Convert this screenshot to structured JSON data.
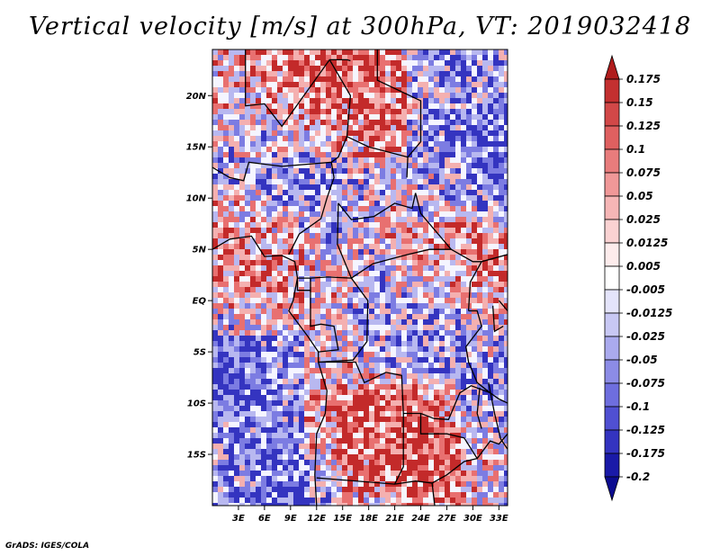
{
  "title": "Vertical velocity [m/s] at 300hPa, VT: 2019032418",
  "credit": "GrADS: IGES/COLA",
  "map": {
    "lat_labels": [
      "20N",
      "15N",
      "10N",
      "5N",
      "EQ",
      "5S",
      "10S",
      "15S"
    ],
    "lat_values": [
      20,
      15,
      10,
      5,
      0,
      -5,
      -10,
      -15
    ],
    "lon_labels": [
      "3E",
      "6E",
      "9E",
      "12E",
      "15E",
      "18E",
      "21E",
      "24E",
      "27E",
      "30E",
      "33E"
    ],
    "lon_values": [
      3,
      6,
      9,
      12,
      15,
      18,
      21,
      24,
      27,
      30,
      33
    ],
    "lon_range": [
      0,
      34
    ],
    "lat_range": [
      -20,
      24.5
    ]
  },
  "colorbar": {
    "labels": [
      "0.175",
      "0.15",
      "0.125",
      "0.1",
      "0.075",
      "0.05",
      "0.025",
      "0.0125",
      "0.005",
      "-0.005",
      "-0.0125",
      "-0.025",
      "-0.05",
      "-0.075",
      "-0.1",
      "-0.125",
      "-0.175",
      "-0.2"
    ],
    "colors": [
      "#b01c1c",
      "#c33030",
      "#d24848",
      "#df6060",
      "#e87c7c",
      "#f09898",
      "#f6b6b6",
      "#fad2d2",
      "#fdecec",
      "#ffffff",
      "#e4e4fb",
      "#c8c8f4",
      "#aaaaee",
      "#8c8ce6",
      "#6e6ede",
      "#5050d2",
      "#3434c0",
      "#1a1aa8",
      "#0c0c90"
    ]
  },
  "field_colors": {
    "strong_pos": "#c32a2a",
    "pos": "#e87070",
    "weak_pos": "#f4b0b0",
    "neutral": "#f5f5ff",
    "weak_neg": "#b8b8f0",
    "neg": "#7c7ce2",
    "strong_neg": "#3434c0"
  }
}
